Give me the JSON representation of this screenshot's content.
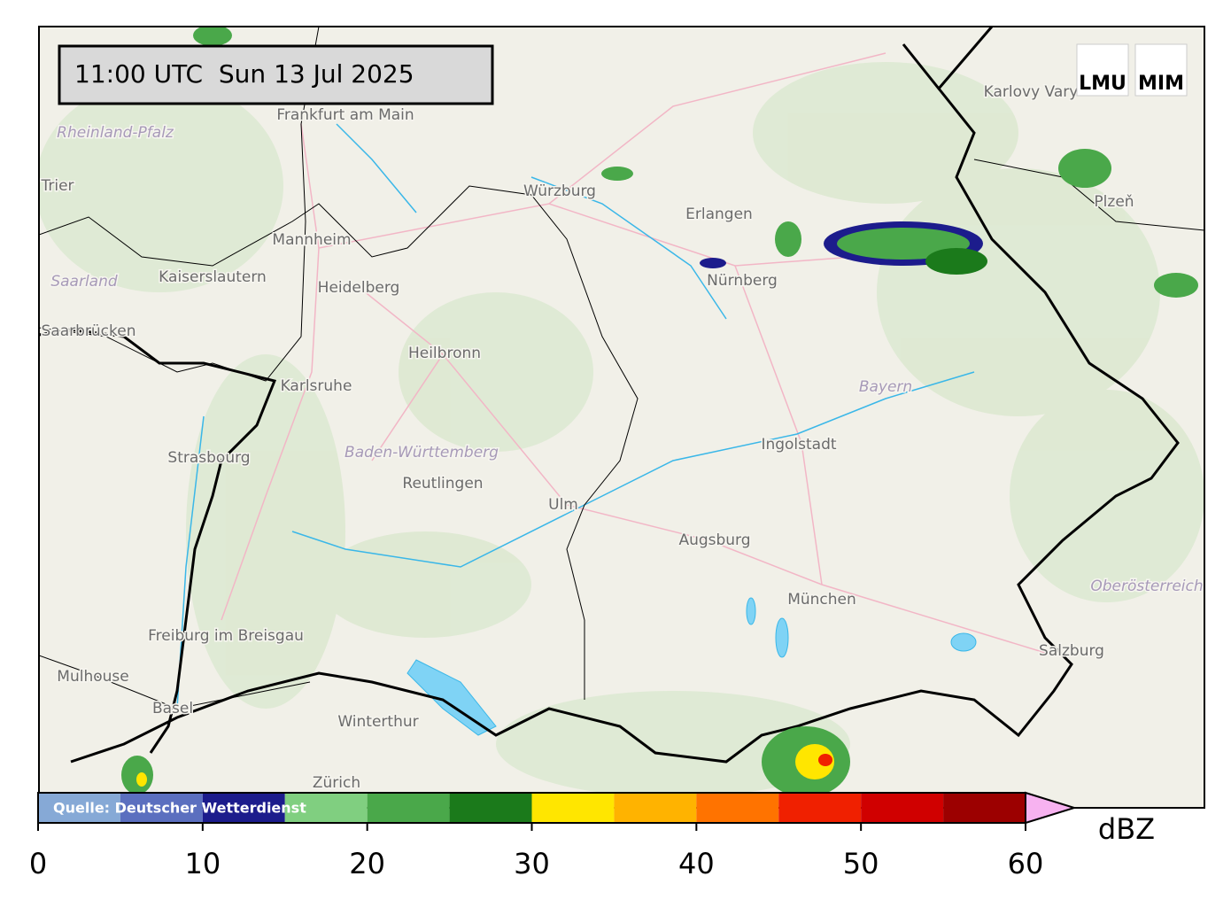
{
  "timestamp": "11:00 UTC  Sun 13 Jul 2025",
  "logos": [
    "LMU",
    "MIM"
  ],
  "places": [
    "Frankfurt am Main",
    "Rheinland-Pfalz",
    "Trier",
    "Mannheim",
    "Kaiserslautern",
    "Saarland",
    "Saarbrücken",
    "Heidelberg",
    "Würzburg",
    "Erlangen",
    "Nürnberg",
    "Heilbronn",
    "Karlsruhe",
    "Bayern",
    "Ingolstadt",
    "Strasbourg",
    "Baden-Württemberg",
    "Reutlingen",
    "Ulm",
    "Augsburg",
    "München",
    "Oberösterreich",
    "Freiburg im Breisgau",
    "Mulhouse",
    "Salzburg",
    "Basel",
    "Winterthur",
    "Zürich",
    "Karlovy Vary",
    "Plzeň"
  ],
  "colorbar": {
    "source": "Quelle: Deutscher Wetterdienst",
    "unit": "dBZ",
    "bounds": [
      0,
      5,
      10,
      15,
      20,
      25,
      30,
      35,
      40,
      45,
      50,
      55,
      60
    ],
    "colors": [
      "#86a9d6",
      "#5b6fbf",
      "#1c1c8c",
      "#80cf80",
      "#4aa84a",
      "#1b7a1b",
      "#ffe600",
      "#ffb300",
      "#ff7300",
      "#f02000",
      "#d00000",
      "#9c0000"
    ],
    "extend_color": "#f7b2f0",
    "lim": [
      0,
      60
    ],
    "ticks": [
      0,
      10,
      20,
      30,
      40,
      50,
      60
    ]
  }
}
